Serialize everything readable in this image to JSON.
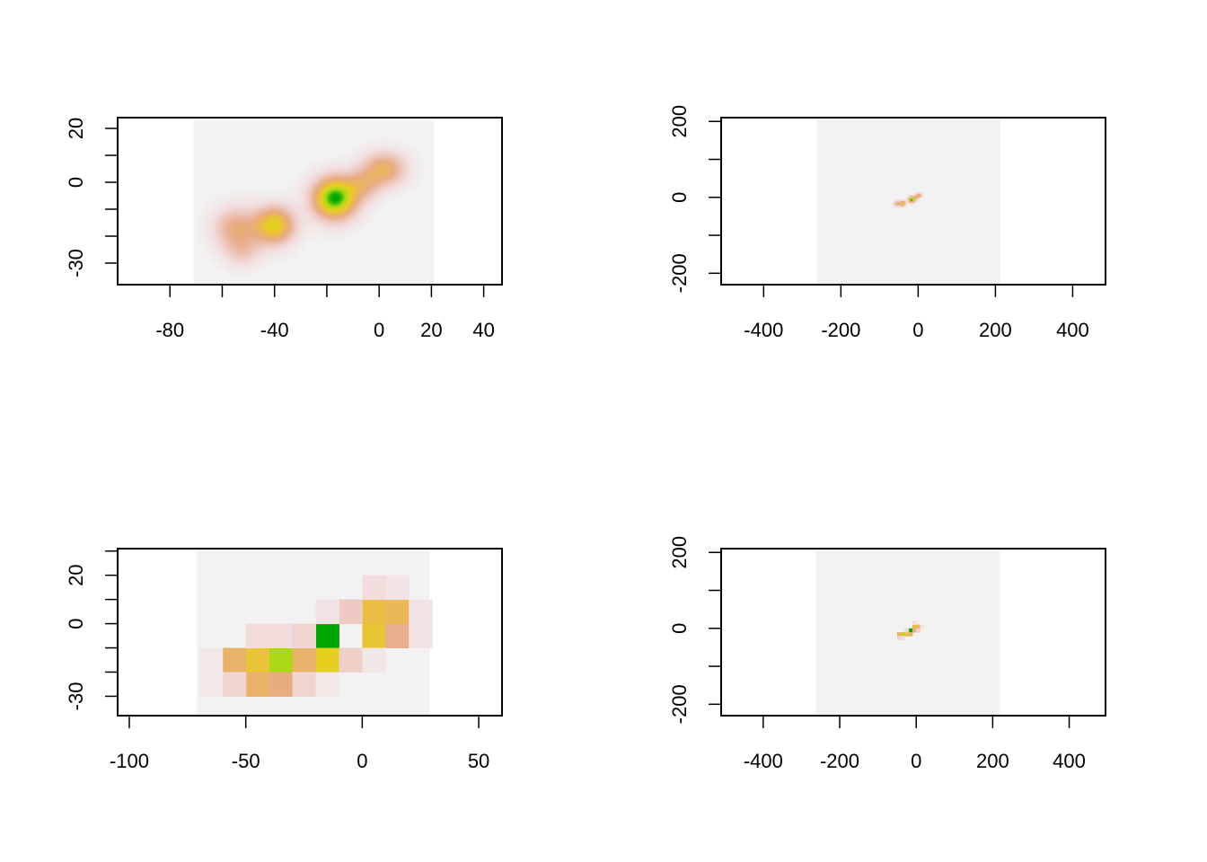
{
  "colors": {
    "background": "#ffffff",
    "raster_bg": "#f2f2f2",
    "frame": "#000000",
    "scale": [
      "#f2f2f2",
      "#f2dede",
      "#ecc4b8",
      "#e8ab84",
      "#eab84e",
      "#e6cf1e",
      "#a8d814",
      "#00a600"
    ]
  },
  "chart_data": [
    {
      "type": "heatmap",
      "title": "",
      "xlabel": "",
      "ylabel": "",
      "xlim": [
        -100,
        47
      ],
      "ylim": [
        -38,
        24
      ],
      "raster_extent": {
        "x": [
          -71,
          21
        ],
        "y": [
          -38,
          23
        ]
      },
      "x_ticks": [
        -80,
        -60,
        -40,
        -20,
        0,
        20,
        40
      ],
      "x_labels": [
        "-80",
        "",
        "-40",
        "",
        "0",
        "20",
        "40"
      ],
      "y_ticks": [
        -30,
        -20,
        -10,
        0,
        10,
        20
      ],
      "y_labels": [
        "-30",
        "",
        "",
        "0",
        "",
        "20"
      ],
      "smooth": true,
      "max_density": 1.0,
      "blobs": [
        {
          "x": -17,
          "y": -6,
          "sx": 6,
          "sy": 5.5,
          "peak": 1.0
        },
        {
          "x": -40,
          "y": -16,
          "sx": 5.5,
          "sy": 5,
          "peak": 0.72
        },
        {
          "x": -55,
          "y": -17,
          "sx": 6,
          "sy": 5.5,
          "peak": 0.42
        },
        {
          "x": 2,
          "y": 5,
          "sx": 6,
          "sy": 4.5,
          "peak": 0.5
        },
        {
          "x": -6,
          "y": -1,
          "sx": 5,
          "sy": 4,
          "peak": 0.3
        },
        {
          "x": -52,
          "y": -26,
          "sx": 5,
          "sy": 4,
          "peak": 0.22
        }
      ]
    },
    {
      "type": "heatmap",
      "title": "",
      "xlabel": "",
      "ylabel": "",
      "xlim": [
        -510,
        485
      ],
      "ylim": [
        -230,
        210
      ],
      "raster_extent": {
        "x": [
          -262,
          213
        ],
        "y": [
          -235,
          213
        ]
      },
      "x_ticks": [
        -400,
        -200,
        0,
        200,
        400
      ],
      "x_labels": [
        "-400",
        "-200",
        "0",
        "200",
        "400"
      ],
      "y_ticks": [
        -200,
        -100,
        0,
        100,
        200
      ],
      "y_labels": [
        "-200",
        "",
        "0",
        "",
        "200"
      ],
      "smooth": true,
      "max_density": 1.0,
      "blobs": [
        {
          "x": -17,
          "y": -6,
          "sx": 6,
          "sy": 5.5,
          "peak": 1.0
        },
        {
          "x": -40,
          "y": -16,
          "sx": 5.5,
          "sy": 5,
          "peak": 0.72
        },
        {
          "x": -55,
          "y": -17,
          "sx": 6,
          "sy": 5.5,
          "peak": 0.42
        },
        {
          "x": 2,
          "y": 5,
          "sx": 6,
          "sy": 4.5,
          "peak": 0.5
        },
        {
          "x": -6,
          "y": -1,
          "sx": 5,
          "sy": 4,
          "peak": 0.3
        }
      ]
    },
    {
      "type": "heatmap",
      "title": "",
      "xlabel": "",
      "ylabel": "",
      "xlim": [
        -105,
        60
      ],
      "ylim": [
        -38,
        31
      ],
      "raster_extent": {
        "x": [
          -71,
          29
        ],
        "y": [
          -38,
          31
        ]
      },
      "x_ticks": [
        -100,
        -50,
        0,
        50
      ],
      "x_labels": [
        "-100",
        "-50",
        "0",
        "50"
      ],
      "y_ticks": [
        -30,
        -20,
        -10,
        0,
        10,
        20,
        30
      ],
      "y_labels": [
        "-30",
        "",
        "",
        "0",
        "",
        "20",
        ""
      ],
      "smooth": false,
      "cell": 10,
      "cells": [
        {
          "x": -20,
          "y": -10,
          "v": 1.0
        },
        {
          "x": -40,
          "y": -20,
          "v": 0.85
        },
        {
          "x": -20,
          "y": -20,
          "v": 0.72
        },
        {
          "x": -50,
          "y": -20,
          "v": 0.65
        },
        {
          "x": -30,
          "y": -20,
          "v": 0.5
        },
        {
          "x": 0,
          "y": -10,
          "v": 0.65
        },
        {
          "x": 0,
          "y": 0,
          "v": 0.6
        },
        {
          "x": 10,
          "y": 0,
          "v": 0.55
        },
        {
          "x": -60,
          "y": -20,
          "v": 0.5
        },
        {
          "x": -50,
          "y": -30,
          "v": 0.5
        },
        {
          "x": -40,
          "y": -30,
          "v": 0.45
        },
        {
          "x": 10,
          "y": -10,
          "v": 0.4
        },
        {
          "x": -10,
          "y": 0,
          "v": 0.25
        },
        {
          "x": -10,
          "y": -20,
          "v": 0.22
        },
        {
          "x": -60,
          "y": -30,
          "v": 0.2
        },
        {
          "x": -30,
          "y": -30,
          "v": 0.2
        },
        {
          "x": -30,
          "y": -10,
          "v": 0.2
        },
        {
          "x": -40,
          "y": -10,
          "v": 0.15
        },
        {
          "x": -50,
          "y": -10,
          "v": 0.15
        },
        {
          "x": 0,
          "y": 10,
          "v": 0.15
        },
        {
          "x": 10,
          "y": 10,
          "v": 0.1
        },
        {
          "x": 20,
          "y": -10,
          "v": 0.1
        },
        {
          "x": 20,
          "y": 0,
          "v": 0.1
        },
        {
          "x": 0,
          "y": -20,
          "v": 0.08
        },
        {
          "x": -20,
          "y": 0,
          "v": 0.1
        },
        {
          "x": -70,
          "y": -20,
          "v": 0.07
        },
        {
          "x": -70,
          "y": -30,
          "v": 0.07
        },
        {
          "x": -20,
          "y": -30,
          "v": 0.07
        }
      ]
    },
    {
      "type": "heatmap",
      "title": "",
      "xlabel": "",
      "ylabel": "",
      "xlim": [
        -510,
        495
      ],
      "ylim": [
        -230,
        210
      ],
      "raster_extent": {
        "x": [
          -262,
          218
        ],
        "y": [
          -235,
          215
        ]
      },
      "x_ticks": [
        -400,
        -200,
        0,
        200,
        400
      ],
      "x_labels": [
        "-400",
        "-200",
        "0",
        "200",
        "400"
      ],
      "y_ticks": [
        -200,
        -100,
        0,
        100,
        200
      ],
      "y_labels": [
        "-200",
        "",
        "0",
        "",
        "200"
      ],
      "smooth": false,
      "cell": 10,
      "cells": [
        {
          "x": -20,
          "y": -10,
          "v": 1.0
        },
        {
          "x": -40,
          "y": -20,
          "v": 0.8
        },
        {
          "x": -30,
          "y": -20,
          "v": 0.6
        },
        {
          "x": -10,
          "y": 0,
          "v": 0.6
        },
        {
          "x": 0,
          "y": 0,
          "v": 0.55
        },
        {
          "x": -50,
          "y": -20,
          "v": 0.5
        },
        {
          "x": -20,
          "y": -20,
          "v": 0.5
        },
        {
          "x": -10,
          "y": -10,
          "v": 0.4
        },
        {
          "x": -30,
          "y": -10,
          "v": 0.2
        },
        {
          "x": 0,
          "y": -10,
          "v": 0.2
        },
        {
          "x": -50,
          "y": -30,
          "v": 0.2
        },
        {
          "x": -40,
          "y": -30,
          "v": 0.15
        },
        {
          "x": -10,
          "y": 10,
          "v": 0.12
        },
        {
          "x": 10,
          "y": 0,
          "v": 0.1
        }
      ]
    }
  ]
}
